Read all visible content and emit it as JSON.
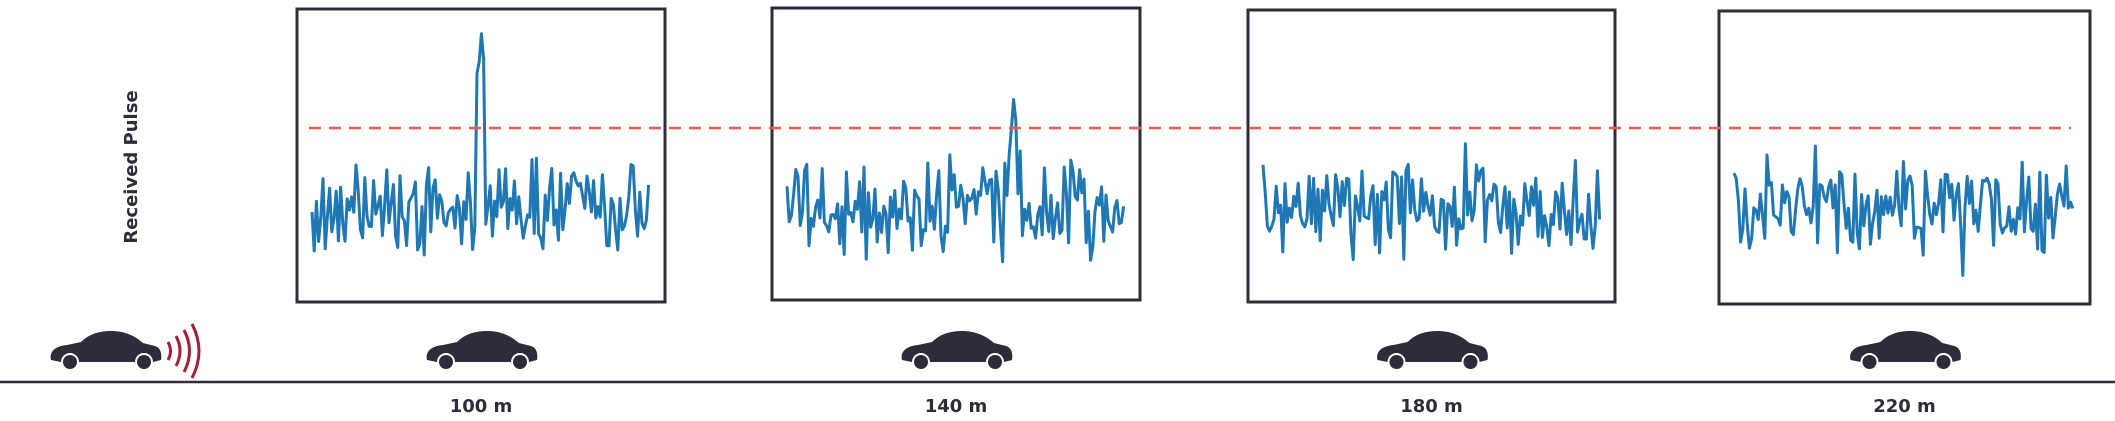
{
  "y_axis_label": "Received Pulse",
  "distances": [
    "100 m",
    "140 m",
    "180 m",
    "220 m"
  ]
}
